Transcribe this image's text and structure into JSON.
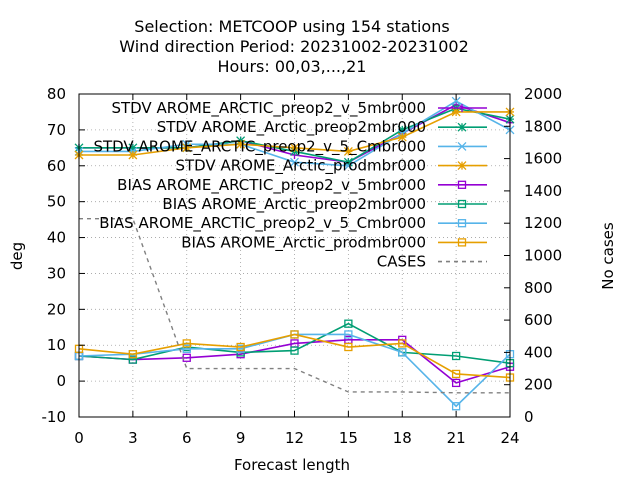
{
  "chart_data": {
    "type": "line",
    "title_lines": [
      "Selection: METCOOP using   154 stations",
      "Wind direction   Period: 20231002-20231002",
      "Hours:  00,03,...,21"
    ],
    "xlabel": "Forecast length",
    "ylabel": "deg",
    "y2label": "No cases",
    "x": [
      0,
      3,
      6,
      9,
      12,
      15,
      18,
      21,
      24
    ],
    "xlim": [
      0,
      24
    ],
    "ylim": [
      -10,
      80
    ],
    "y2lim": [
      0,
      2000
    ],
    "xticks": [
      "0",
      "3",
      "6",
      "9",
      "12",
      "15",
      "18",
      "21",
      "24"
    ],
    "yticks": [
      "-10",
      "0",
      "10",
      "20",
      "30",
      "40",
      "50",
      "60",
      "70",
      "80"
    ],
    "y2ticks": [
      "0",
      "200",
      "400",
      "600",
      "800",
      "1000",
      "1200",
      "1400",
      "1600",
      "1800",
      "2000"
    ],
    "grid": "dotted",
    "legend_position": "top-right",
    "series": [
      {
        "name": "STDV AROME_ARCTIC_preop2_v_5mbr000",
        "color": "#9400d3",
        "marker": "plus",
        "axis": "y",
        "values": [
          65,
          65,
          65,
          67,
          63,
          61,
          69,
          77,
          72
        ]
      },
      {
        "name": "STDV AROME_Arctic_preop2mbr000",
        "color": "#009e73",
        "marker": "asterisk",
        "axis": "y",
        "values": [
          65,
          65,
          65,
          67,
          64,
          61,
          70,
          76,
          73
        ]
      },
      {
        "name": "STDV AROME_ARCTIC_preop2_v_5_Cmbr000",
        "color": "#56b4e9",
        "marker": "x",
        "axis": "y",
        "values": [
          64,
          64,
          66,
          66,
          61,
          60,
          69,
          78,
          70
        ]
      },
      {
        "name": "STDV AROME_Arctic_prodmbr000",
        "color": "#e69f00",
        "marker": "star",
        "axis": "y",
        "values": [
          63,
          63,
          65,
          66,
          65,
          64,
          68,
          75,
          75
        ]
      },
      {
        "name": "BIAS AROME_ARCTIC_preop2_v_5mbr000",
        "color": "#9400d3",
        "marker": "square",
        "axis": "y",
        "values": [
          7,
          6,
          6.5,
          7.5,
          10.5,
          11.5,
          11.5,
          -0.5,
          4
        ]
      },
      {
        "name": "BIAS AROME_Arctic_preop2mbr000",
        "color": "#009e73",
        "marker": "square",
        "axis": "y",
        "values": [
          7,
          6,
          9.5,
          8,
          8.5,
          16,
          8,
          7,
          5
        ]
      },
      {
        "name": "BIAS AROME_ARCTIC_preop2_v_5_Cmbr000",
        "color": "#56b4e9",
        "marker": "square",
        "axis": "y",
        "values": [
          7,
          7.5,
          9,
          9,
          13,
          13,
          8,
          -7,
          7.5
        ]
      },
      {
        "name": "BIAS AROME_Arctic_prodmbr000",
        "color": "#e69f00",
        "marker": "square",
        "axis": "y",
        "values": [
          9,
          7.5,
          10.5,
          9.5,
          13,
          9.5,
          10.5,
          2,
          1
        ]
      },
      {
        "name": "CASES",
        "color": "#808080",
        "marker": "none",
        "dash": "dashed",
        "axis": "y2",
        "values": [
          1228,
          1228,
          300,
          300,
          300,
          155,
          155,
          150,
          150
        ]
      }
    ]
  }
}
